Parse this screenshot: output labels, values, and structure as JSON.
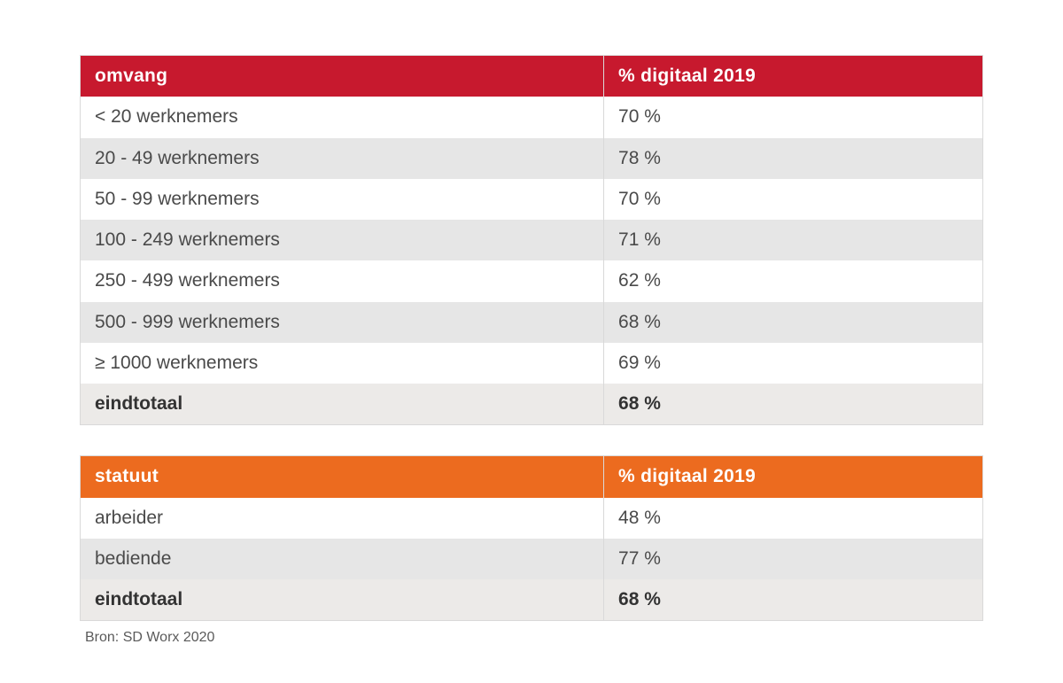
{
  "table1": {
    "type": "table",
    "header_bg": "#c7192e",
    "header_fg": "#ffffff",
    "row_alt_bg": "#e6e6e6",
    "row_bg": "#ffffff",
    "total_bg": "#eceae8",
    "border_color": "#d9d9d9",
    "font_size_pt": 16,
    "columns": [
      "omvang",
      "% digitaal 2019"
    ],
    "rows": [
      {
        "label": "< 20 werknemers",
        "value": "70 %",
        "alt": false
      },
      {
        "label": "20 - 49 werknemers",
        "value": "78 %",
        "alt": true
      },
      {
        "label": "50 - 99 werknemers",
        "value": "70 %",
        "alt": false
      },
      {
        "label": "100 - 249 werknemers",
        "value": "71 %",
        "alt": true
      },
      {
        "label": "250 - 499 werknemers",
        "value": "62 %",
        "alt": false
      },
      {
        "label": "500 - 999 werknemers",
        "value": "68 %",
        "alt": true
      },
      {
        "label": "≥ 1000 werknemers",
        "value": "69 %",
        "alt": false
      }
    ],
    "total": {
      "label": "eindtotaal",
      "value": "68 %"
    }
  },
  "table2": {
    "type": "table",
    "header_bg": "#ec6b1f",
    "header_fg": "#ffffff",
    "row_alt_bg": "#e6e6e6",
    "row_bg": "#ffffff",
    "total_bg": "#eceae8",
    "border_color": "#d9d9d9",
    "font_size_pt": 16,
    "columns": [
      "statuut",
      "% digitaal 2019"
    ],
    "rows": [
      {
        "label": "arbeider",
        "value": "48 %",
        "alt": false
      },
      {
        "label": "bediende",
        "value": "77 %",
        "alt": true
      }
    ],
    "total": {
      "label": "eindtotaal",
      "value": "68 %"
    }
  },
  "source_line": "Bron: SD Worx 2020"
}
